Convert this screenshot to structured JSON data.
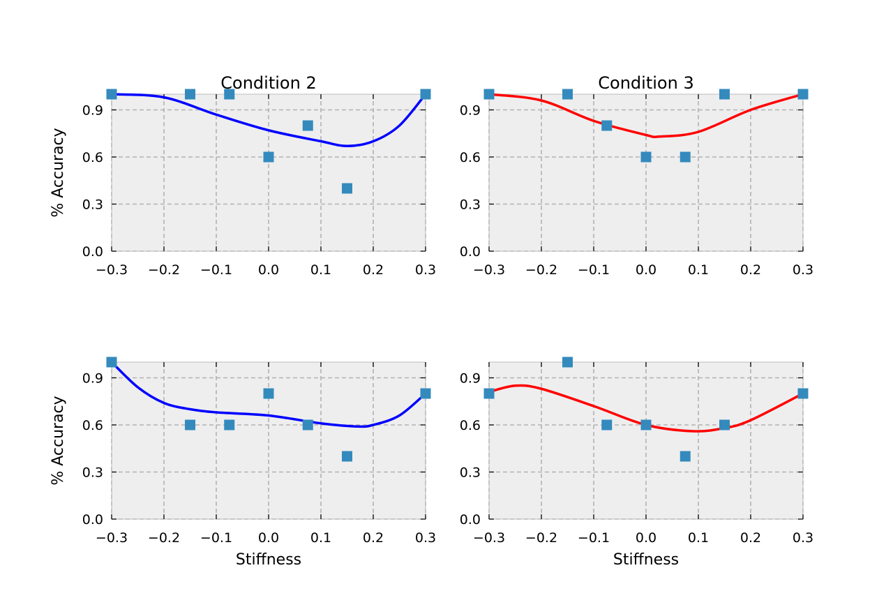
{
  "chart_data": [
    {
      "type": "scatter",
      "title": "Condition 2",
      "xlabel": "",
      "ylabel": "% Accuracy",
      "xlim": [
        -0.3,
        0.3
      ],
      "ylim": [
        0.0,
        1.0
      ],
      "xticks": [
        "−0.3",
        "−0.2",
        "−0.1",
        "0.0",
        "0.1",
        "0.2",
        "0.3"
      ],
      "yticks": [
        "0.0",
        "0.3",
        "0.6",
        "0.9"
      ],
      "grid": true,
      "points": {
        "x": [
          -0.3,
          -0.15,
          -0.075,
          0.0,
          0.075,
          0.15,
          0.3
        ],
        "y": [
          1.0,
          1.0,
          1.0,
          0.6,
          0.8,
          0.4,
          1.0
        ],
        "color": "#348abd"
      },
      "fit": {
        "x": [
          -0.3,
          -0.2,
          -0.1,
          0.0,
          0.1,
          0.15,
          0.2,
          0.25,
          0.3
        ],
        "y": [
          1.0,
          0.98,
          0.87,
          0.77,
          0.7,
          0.67,
          0.7,
          0.8,
          1.0
        ],
        "color": "#0000ff"
      }
    },
    {
      "type": "scatter",
      "title": "Condition 3",
      "xlabel": "",
      "ylabel": "",
      "xlim": [
        -0.3,
        0.3
      ],
      "ylim": [
        0.0,
        1.0
      ],
      "xticks": [
        "−0.3",
        "−0.2",
        "−0.1",
        "0.0",
        "0.1",
        "0.2",
        "0.3"
      ],
      "yticks": [
        "0.0",
        "0.3",
        "0.6",
        "0.9"
      ],
      "grid": true,
      "points": {
        "x": [
          -0.3,
          -0.15,
          -0.075,
          0.0,
          0.075,
          0.15,
          0.3
        ],
        "y": [
          1.0,
          1.0,
          0.8,
          0.6,
          0.6,
          1.0,
          1.0
        ],
        "color": "#348abd"
      },
      "fit": {
        "x": [
          -0.3,
          -0.2,
          -0.1,
          0.0,
          0.025,
          0.1,
          0.2,
          0.3
        ],
        "y": [
          1.0,
          0.96,
          0.83,
          0.74,
          0.73,
          0.76,
          0.9,
          1.0
        ],
        "color": "#ff0000"
      }
    },
    {
      "type": "scatter",
      "title": "",
      "xlabel": "Stiffness",
      "ylabel": "% Accuracy",
      "xlim": [
        -0.3,
        0.3
      ],
      "ylim": [
        0.0,
        1.0
      ],
      "xticks": [
        "−0.3",
        "−0.2",
        "−0.1",
        "0.0",
        "0.1",
        "0.2",
        "0.3"
      ],
      "yticks": [
        "0.0",
        "0.3",
        "0.6",
        "0.9"
      ],
      "grid": true,
      "points": {
        "x": [
          -0.3,
          -0.15,
          -0.075,
          0.0,
          0.075,
          0.15,
          0.3
        ],
        "y": [
          1.0,
          0.6,
          0.6,
          0.8,
          0.6,
          0.4,
          0.8
        ],
        "color": "#348abd"
      },
      "fit": {
        "x": [
          -0.3,
          -0.25,
          -0.2,
          -0.15,
          -0.1,
          0.0,
          0.1,
          0.17,
          0.2,
          0.25,
          0.3
        ],
        "y": [
          1.0,
          0.84,
          0.74,
          0.7,
          0.68,
          0.66,
          0.61,
          0.59,
          0.6,
          0.66,
          0.8
        ],
        "color": "#0000ff"
      }
    },
    {
      "type": "scatter",
      "title": "",
      "xlabel": "Stiffness",
      "ylabel": "",
      "xlim": [
        -0.3,
        0.3
      ],
      "ylim": [
        0.0,
        1.0
      ],
      "xticks": [
        "−0.3",
        "−0.2",
        "−0.1",
        "0.0",
        "0.1",
        "0.2",
        "0.3"
      ],
      "yticks": [
        "0.0",
        "0.3",
        "0.6",
        "0.9"
      ],
      "grid": true,
      "points": {
        "x": [
          -0.3,
          -0.15,
          -0.075,
          0.0,
          0.075,
          0.15,
          0.3
        ],
        "y": [
          0.8,
          1.0,
          0.6,
          0.6,
          0.4,
          0.6,
          0.8
        ],
        "color": "#348abd"
      },
      "fit": {
        "x": [
          -0.3,
          -0.25,
          -0.2,
          -0.1,
          0.0,
          0.09,
          0.15,
          0.2,
          0.3
        ],
        "y": [
          0.81,
          0.85,
          0.83,
          0.72,
          0.6,
          0.56,
          0.58,
          0.63,
          0.8
        ],
        "color": "#ff0000"
      }
    }
  ]
}
